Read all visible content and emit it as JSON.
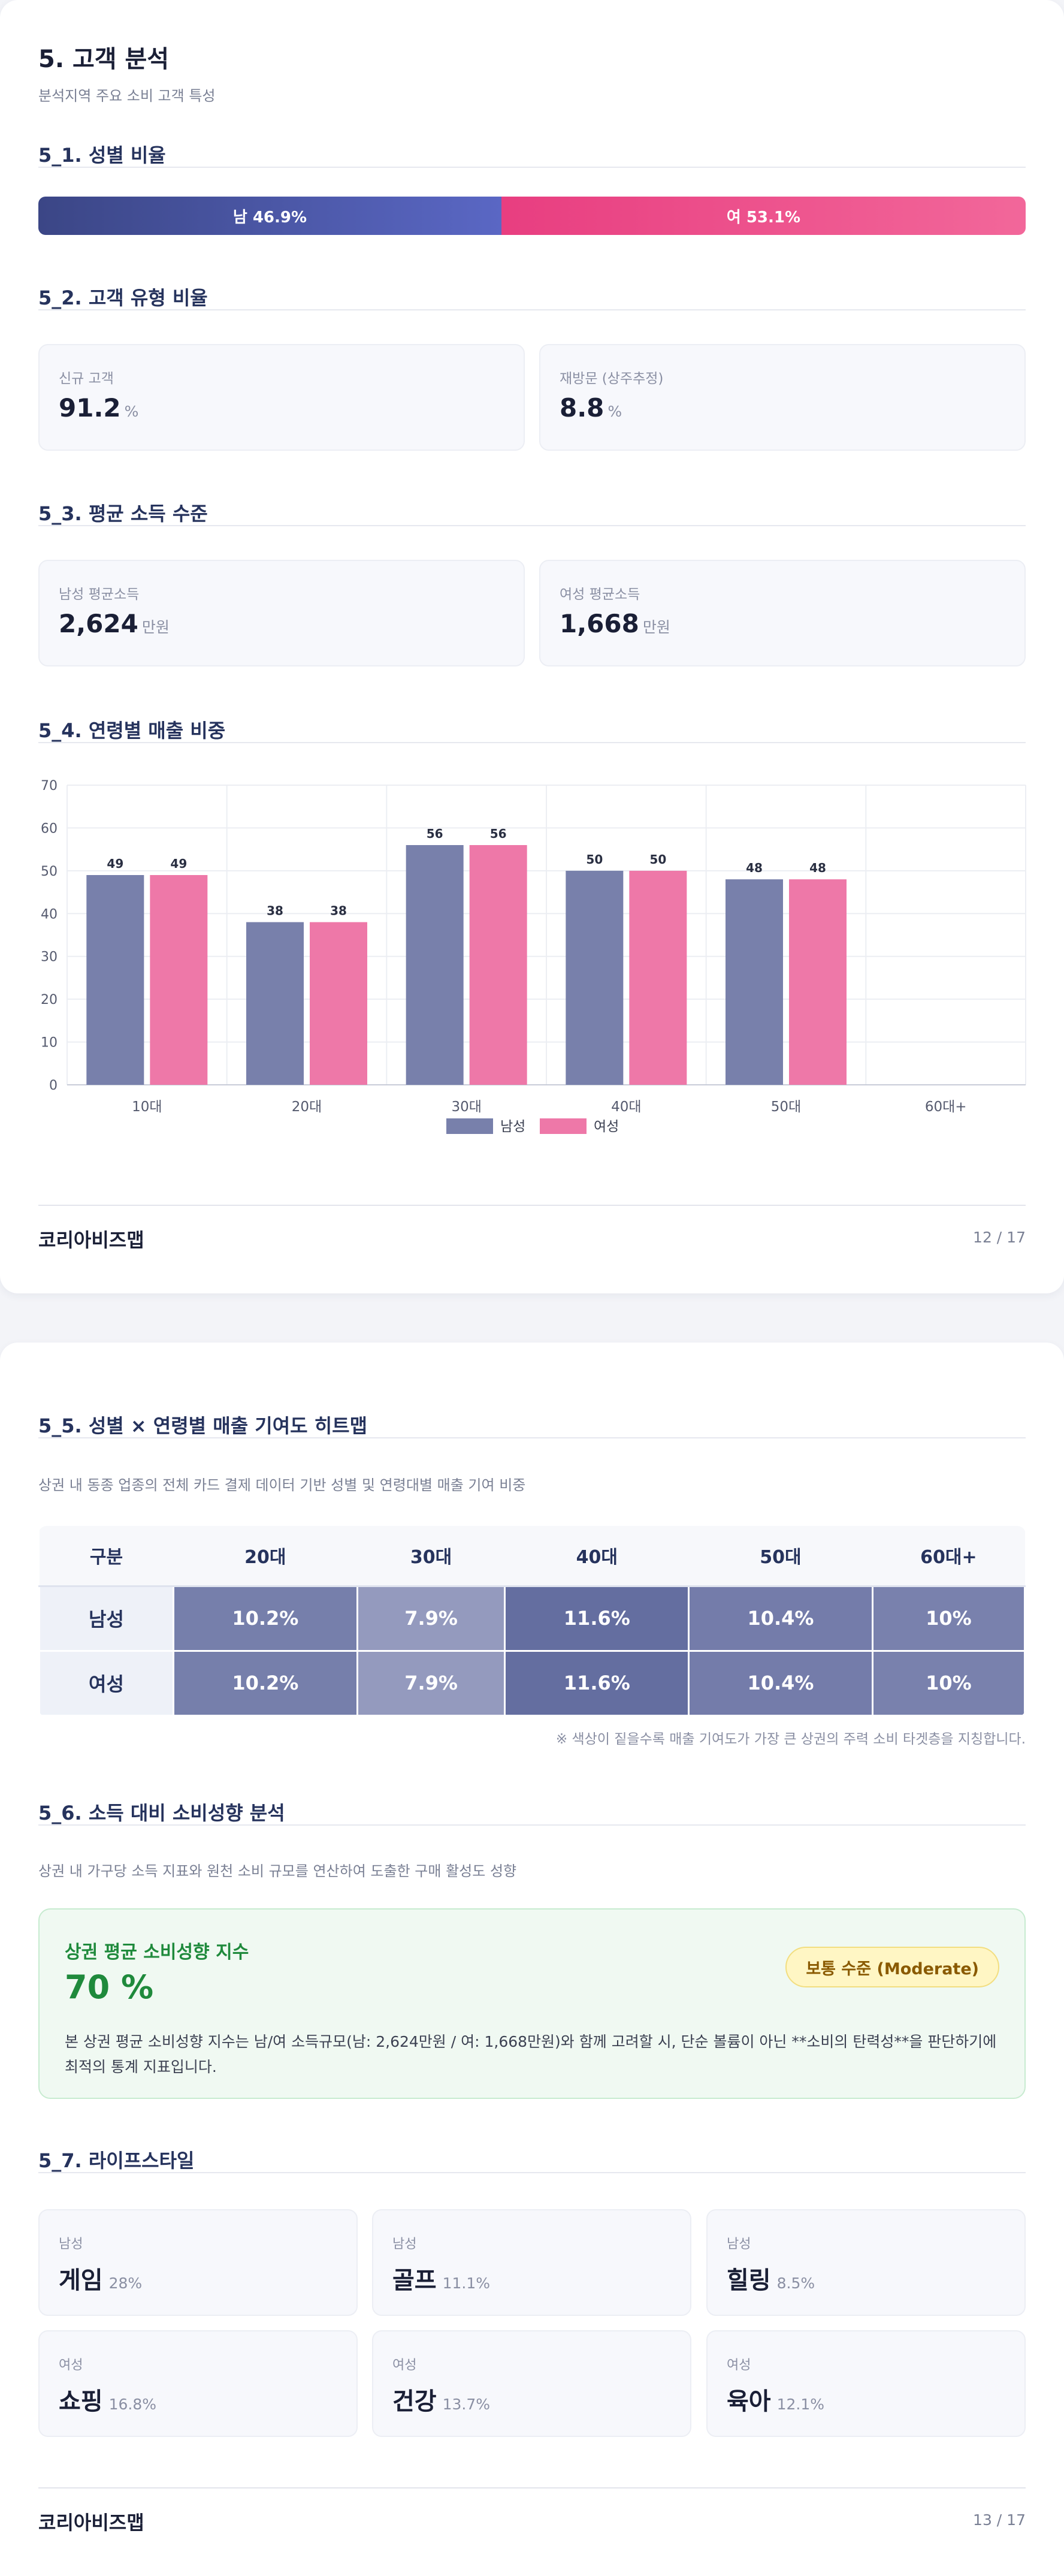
{
  "page1": {
    "title": "5. 고객 분석",
    "subtitle": "분석지역 주요 소비 고객 특성",
    "gender": {
      "heading": "5_1. 성별 비율",
      "male_label": "남 46.9%",
      "female_label": "여 53.1%",
      "male_pct": 46.9,
      "female_pct": 53.1
    },
    "customer_type": {
      "heading": "5_2. 고객 유형 비율",
      "cards": [
        {
          "label": "신규 고객",
          "value": "91.2",
          "unit": "%"
        },
        {
          "label": "재방문 (상주추정)",
          "value": "8.8",
          "unit": "%"
        }
      ]
    },
    "income": {
      "heading": "5_3. 평균 소득 수준",
      "cards": [
        {
          "label": "남성 평균소득",
          "value": "2,624",
          "unit": "만원"
        },
        {
          "label": "여성 평균소득",
          "value": "1,668",
          "unit": "만원"
        }
      ]
    },
    "age_sales": {
      "heading": "5_4. 연령별 매출 비중"
    },
    "footer": {
      "brand": "코리아비즈맵",
      "page": "12 / 17"
    }
  },
  "chart_data": {
    "type": "bar",
    "categories": [
      "10대",
      "20대",
      "30대",
      "40대",
      "50대",
      "60대+"
    ],
    "series": [
      {
        "name": "남성",
        "values": [
          49,
          38,
          56,
          50,
          48,
          null
        ]
      },
      {
        "name": "여성",
        "values": [
          49,
          38,
          56,
          50,
          48,
          null
        ]
      }
    ],
    "ylim": [
      0,
      70
    ],
    "yticks": [
      0,
      10,
      20,
      30,
      40,
      50,
      60,
      70
    ],
    "grid": true,
    "legend_position": "bottom",
    "colors": {
      "male": "#7880ab",
      "female": "#ee78a8"
    }
  },
  "page2": {
    "heatmap": {
      "heading": "5_5. 성별 × 연령별 매출 기여도 히트맵",
      "description": "상권 내 동종 업종의 전체 카드 결제 데이터 기반 성별 및 연령대별 매출 기여 비중",
      "columns": [
        "구분",
        "20대",
        "30대",
        "40대",
        "50대",
        "60대+"
      ],
      "rows": [
        {
          "label": "남성",
          "cells": [
            "10.2%",
            "7.9%",
            "11.6%",
            "10.4%",
            "10%"
          ]
        },
        {
          "label": "여성",
          "cells": [
            "10.2%",
            "7.9%",
            "11.6%",
            "10.4%",
            "10%"
          ]
        }
      ],
      "values": [
        [
          10.2,
          7.9,
          11.6,
          10.4,
          10
        ],
        [
          10.2,
          7.9,
          11.6,
          10.4,
          10
        ]
      ],
      "note": "※ 색상이 짙을수록 매출 기여도가 가장 큰 상권의 주력 소비 타겟층을 지칭합니다."
    },
    "spending": {
      "heading": "5_6. 소득 대비 소비성향 분석",
      "description": "상권 내 가구당 소득 지표와 원천 소비 규모를 연산하여 도출한 구매 활성도 성향",
      "index_title": "상권 평균 소비성향 지수",
      "index_value": "70 %",
      "badge": "보통 수준 (Moderate)",
      "text": "본 상권 평균 소비성향 지수는 남/여 소득규모(남: 2,624만원 / 여: 1,668만원)와 함께 고려할 시, 단순 볼륨이 아닌 **소비의 탄력성**을 판단하기에 최적의 통계 지표입니다."
    },
    "lifestyle": {
      "heading": "5_7. 라이프스타일",
      "items": [
        {
          "gender": "남성",
          "name": "게임",
          "pct": "28%"
        },
        {
          "gender": "남성",
          "name": "골프",
          "pct": "11.1%"
        },
        {
          "gender": "남성",
          "name": "힐링",
          "pct": "8.5%"
        },
        {
          "gender": "여성",
          "name": "쇼핑",
          "pct": "16.8%"
        },
        {
          "gender": "여성",
          "name": "건강",
          "pct": "13.7%"
        },
        {
          "gender": "여성",
          "name": "육아",
          "pct": "12.1%"
        }
      ]
    },
    "footer": {
      "brand": "코리아비즈맵",
      "page": "13 / 17"
    }
  }
}
